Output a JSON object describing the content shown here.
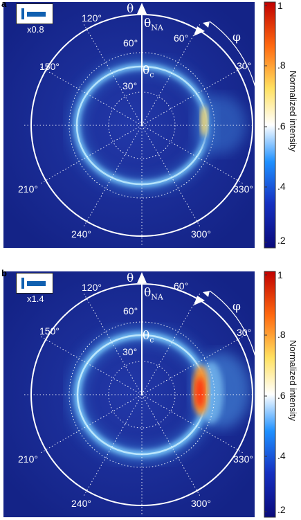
{
  "panels": [
    {
      "label": "a",
      "magnification": "x0.8",
      "theta_label": "θ",
      "theta_na_label": "θNA",
      "theta_c_label": "θc",
      "phi_label": "φ",
      "theta_ticks": [
        "30°",
        "60°"
      ],
      "phi_ticks": [
        "120°",
        "60°",
        "150°",
        "30°",
        "210°",
        "330°",
        "240°",
        "300°"
      ],
      "colorbar": {
        "title": "Normalized intensity",
        "ticks": [
          "1",
          ".8",
          ".6",
          ".4",
          ".2"
        ]
      },
      "hotspot_intensity": 0.8
    },
    {
      "label": "b",
      "magnification": "x1.4",
      "theta_label": "θ",
      "theta_na_label": "θNA",
      "theta_c_label": "θc",
      "phi_label": "φ",
      "theta_ticks": [
        "30°",
        "60°"
      ],
      "phi_ticks": [
        "120°",
        "60°",
        "150°",
        "30°",
        "210°",
        "330°",
        "240°",
        "300°"
      ],
      "colorbar": {
        "title": "Normalized intensity",
        "ticks": [
          "1",
          ".8",
          ".6",
          ".4",
          ".2"
        ]
      },
      "hotspot_intensity": 1.0
    }
  ],
  "colors": {
    "background": "#1a2d9a",
    "ring": "#b8e8ff",
    "hot": "#ff3a10"
  }
}
